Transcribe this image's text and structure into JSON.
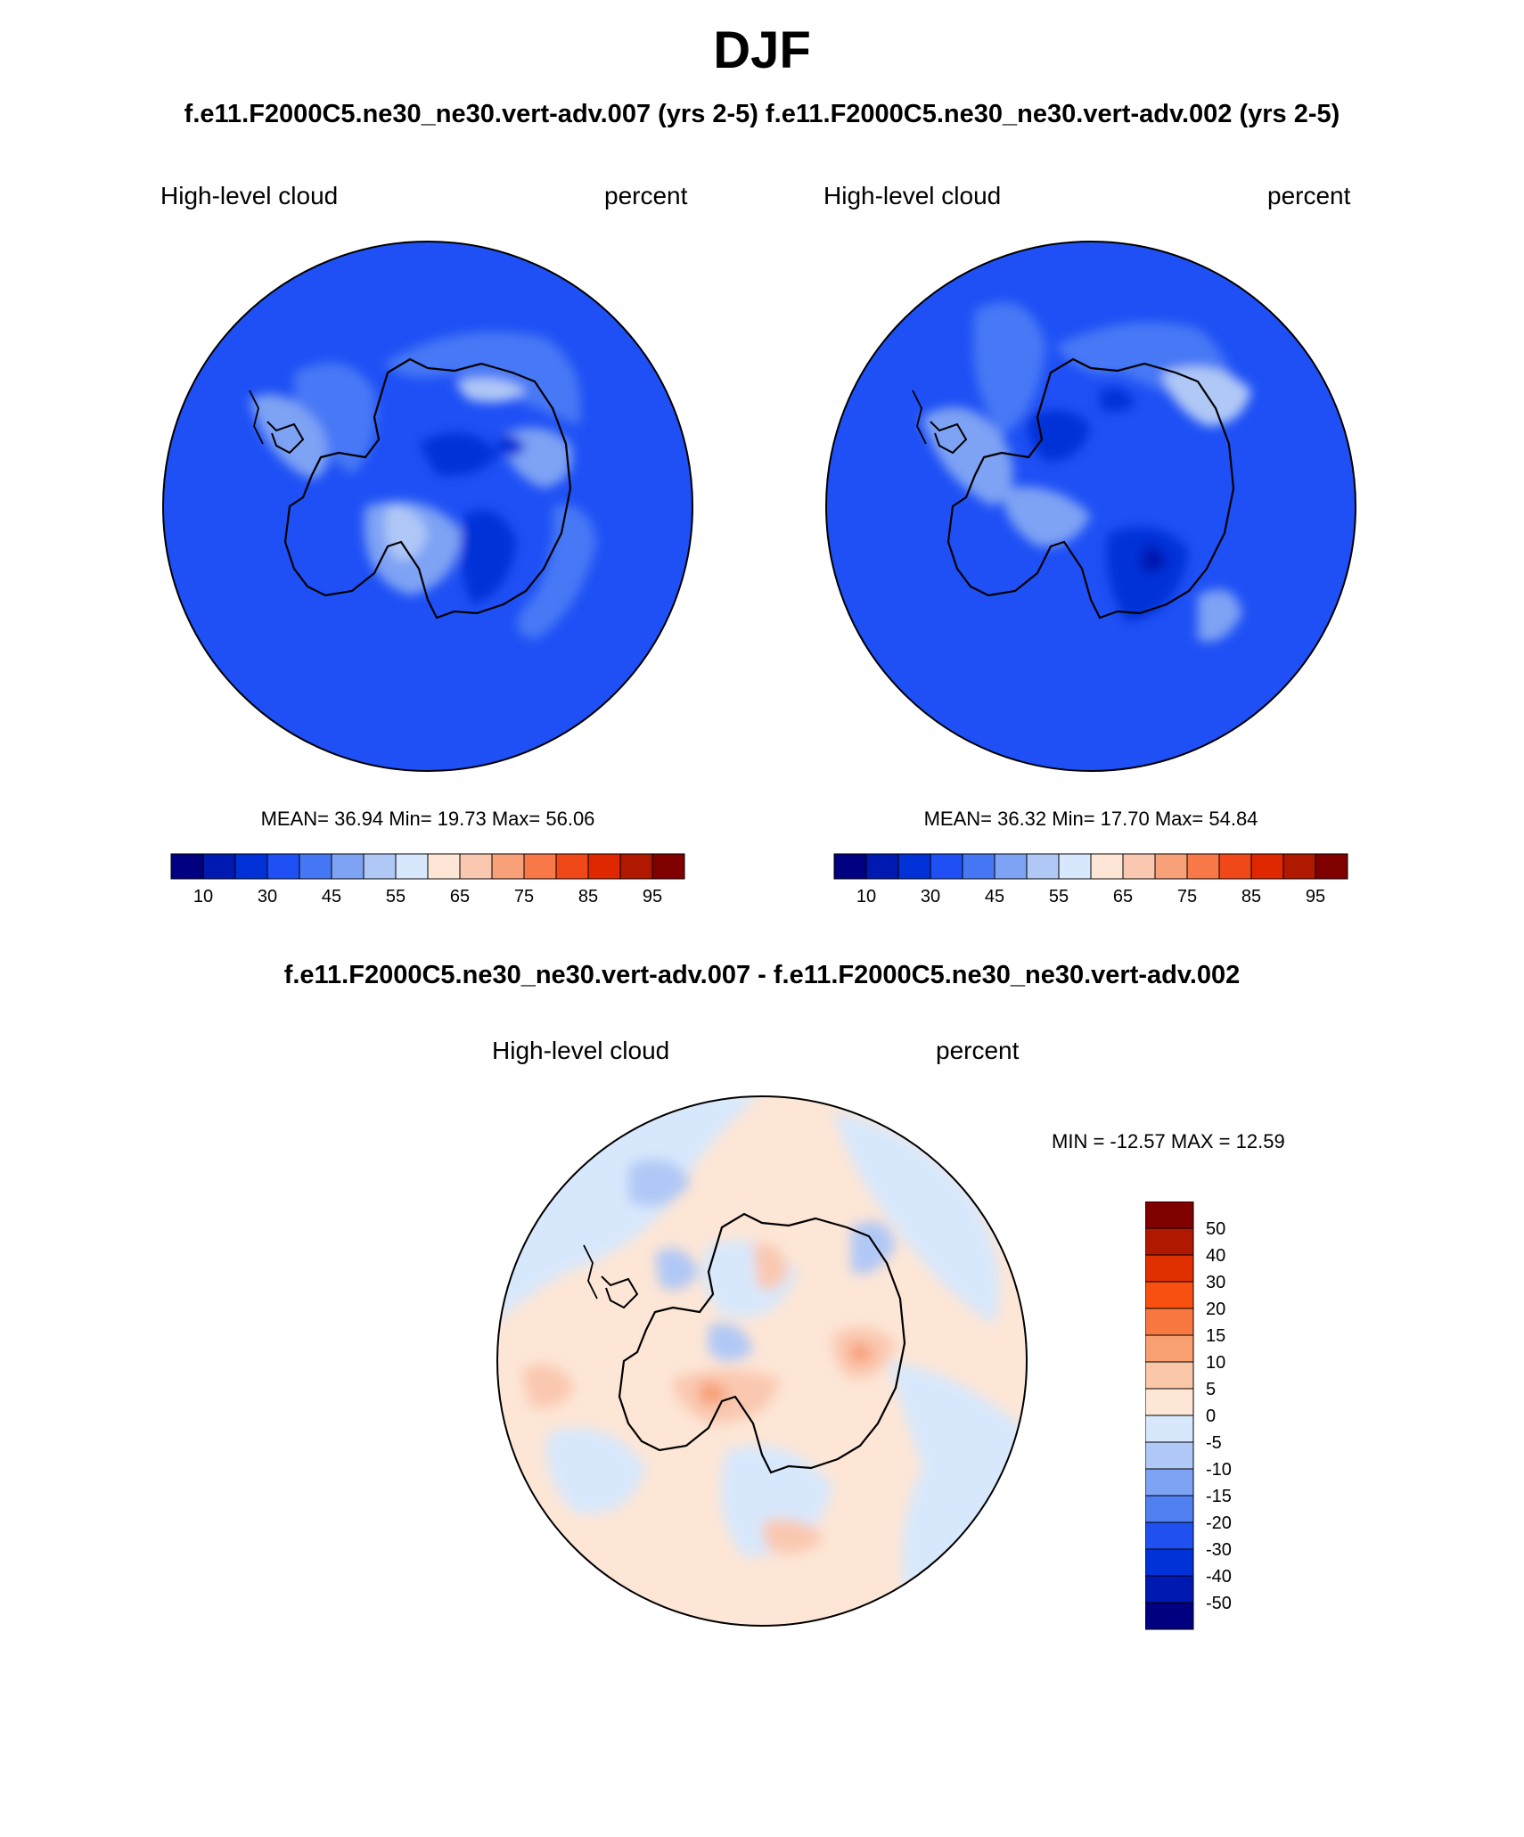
{
  "title": "DJF",
  "case_title": "f.e11.F2000C5.ne30_ne30.vert-adv.007 (yrs 2-5)  f.e11.F2000C5.ne30_ne30.vert-adv.002 (yrs 2-5)",
  "diff_title": "f.e11.F2000C5.ne30_ne30.vert-adv.007 - f.e11.F2000C5.ne30_ne30.vert-adv.002",
  "panels": [
    {
      "variable": "High-level cloud",
      "units": "percent",
      "stats": "MEAN=  36.94  Min=  19.73  Max=  56.06"
    },
    {
      "variable": "High-level cloud",
      "units": "percent",
      "stats": "MEAN=  36.32  Min=  17.70  Max=  54.84"
    }
  ],
  "diff_panel": {
    "variable": "High-level cloud",
    "units": "percent",
    "stats": "MIN = -12.57 MAX =  12.59"
  },
  "colorbar_top": {
    "colors": [
      "#000080",
      "#0019b0",
      "#0032d8",
      "#1e50f5",
      "#4678f5",
      "#7ea2f4",
      "#b0c8f6",
      "#d8e8fc",
      "#fde6d6",
      "#fac8b0",
      "#f8a078",
      "#f87848",
      "#f04818",
      "#e02800",
      "#b01800",
      "#800000"
    ],
    "labels": [
      "10",
      "30",
      "45",
      "55",
      "65",
      "75",
      "85",
      "95"
    ]
  },
  "colorbar_diff": {
    "colors": [
      "#800000",
      "#b01800",
      "#e03000",
      "#f85010",
      "#f87840",
      "#f8a070",
      "#fac8a8",
      "#fde6d6",
      "#d8e8fc",
      "#b0c8f6",
      "#7ea2f4",
      "#5080f0",
      "#2050f0",
      "#0032d8",
      "#0019b0",
      "#000080"
    ],
    "labels": [
      "50",
      "40",
      "30",
      "20",
      "15",
      "10",
      "5",
      "0",
      "-5",
      "-10",
      "-15",
      "-20",
      "-30",
      "-40",
      "-50"
    ]
  }
}
